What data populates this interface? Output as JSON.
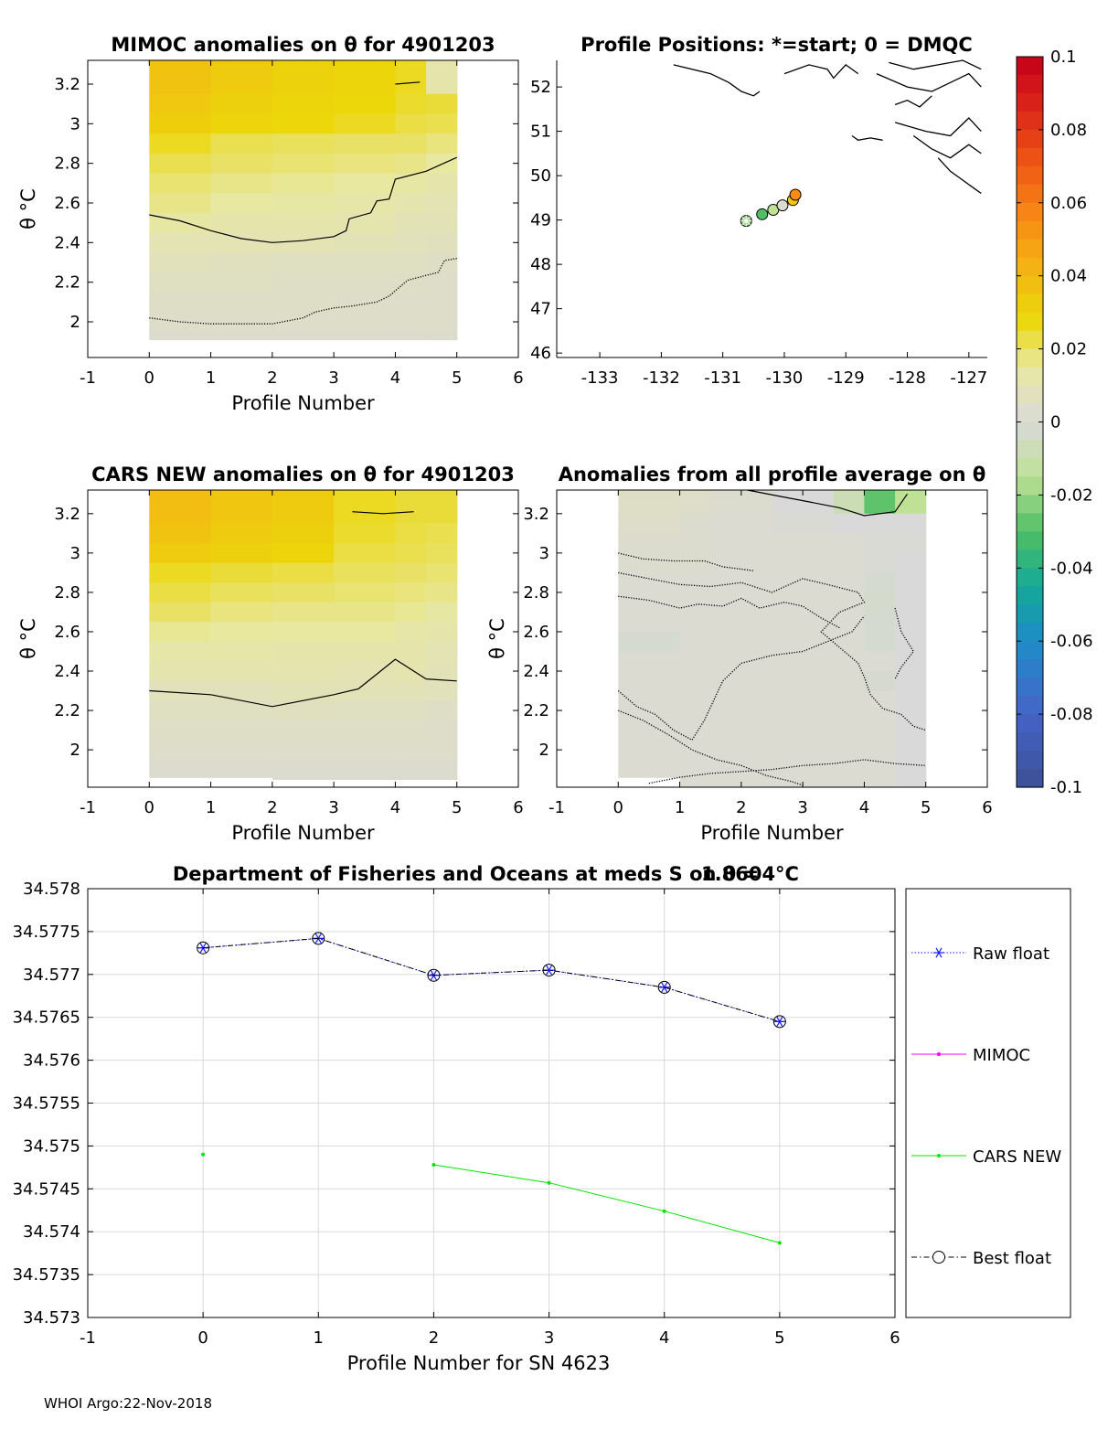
{
  "footer": "WHOI Argo:22-Nov-2018",
  "colors": {
    "axis": "#000000",
    "grid": "#d9d9d9",
    "cellBase": "#d9d9d9",
    "raw": "#1a1aff",
    "mimoc": "#ff00ff",
    "cars": "#00e600",
    "best": "#000000"
  },
  "chart_data": [
    {
      "id": "mimoc",
      "type": "heatmap",
      "title": "MIMOC anomalies on θ  for 4901203",
      "xlabel": "Profile Number",
      "ylabel": "θ °C",
      "xlim": [
        -1,
        6
      ],
      "ylim": [
        1.82,
        3.32
      ],
      "xticks": [
        -1,
        0,
        1,
        2,
        3,
        4,
        5,
        6
      ],
      "yticks": [
        2,
        2.2,
        2.4,
        2.6,
        2.8,
        3,
        3.2
      ],
      "theta_levels": [
        3.2,
        3.1,
        3.0,
        2.9,
        2.8,
        2.7,
        2.6,
        2.5,
        2.4,
        2.3,
        2.2,
        2.1,
        2.0,
        1.9
      ],
      "anomaly_grid": [
        [
          0.036,
          0.033,
          0.03,
          0.029,
          0.026,
          0.012
        ],
        [
          0.034,
          0.031,
          0.029,
          0.028,
          0.025,
          0.024
        ],
        [
          0.032,
          0.029,
          0.028,
          0.026,
          0.023,
          0.022
        ],
        [
          0.026,
          0.022,
          0.021,
          0.02,
          0.02,
          0.018
        ],
        [
          0.022,
          0.02,
          0.019,
          0.018,
          0.017,
          0.015
        ],
        [
          0.019,
          0.017,
          0.016,
          0.015,
          0.014,
          0.012
        ],
        [
          0.017,
          0.015,
          0.014,
          0.013,
          0.011,
          0.01
        ],
        [
          0.014,
          0.012,
          0.012,
          0.011,
          0.009,
          0.009
        ],
        [
          0.01,
          0.01,
          0.01,
          0.009,
          0.008,
          0.007
        ],
        [
          0.008,
          0.007,
          0.006,
          0.006,
          0.006,
          0.005
        ],
        [
          0.006,
          0.006,
          0.005,
          0.005,
          0.005,
          0.004
        ],
        [
          0.005,
          0.005,
          0.005,
          0.004,
          0.004,
          0.004
        ],
        [
          0.004,
          0.004,
          0.004,
          0.004,
          0.004,
          0.004
        ],
        [
          0.003,
          0.003,
          0.003,
          0.003,
          0.003,
          0.003
        ]
      ],
      "contours": [
        {
          "style": "solid",
          "x": [
            4.0,
            4.4
          ],
          "y": [
            3.2,
            3.21
          ]
        },
        {
          "style": "solid",
          "x": [
            0,
            0.5,
            1,
            1.5,
            2,
            2.5,
            3,
            3.2,
            3.25,
            3.6,
            3.7,
            3.9,
            4.0,
            4.5,
            5.0
          ],
          "y": [
            2.54,
            2.51,
            2.46,
            2.42,
            2.4,
            2.41,
            2.43,
            2.46,
            2.52,
            2.55,
            2.61,
            2.62,
            2.72,
            2.76,
            2.83
          ]
        },
        {
          "style": "dotted",
          "x": [
            0,
            0.5,
            1,
            1.5,
            2,
            2.5,
            2.7,
            3.0,
            3.3,
            3.7,
            3.9,
            4.2,
            4.7,
            4.8,
            5.0
          ],
          "y": [
            2.02,
            2.0,
            1.99,
            1.99,
            1.99,
            2.02,
            2.05,
            2.07,
            2.08,
            2.1,
            2.13,
            2.21,
            2.25,
            2.31,
            2.32
          ]
        }
      ]
    },
    {
      "id": "positions",
      "type": "scatter",
      "title": "Profile Positions: *=start; 0 = DMQC",
      "xlim": [
        -133.7,
        -126.7
      ],
      "ylim": [
        45.9,
        52.6
      ],
      "xticks": [
        -133,
        -132,
        -131,
        -130,
        -129,
        -128,
        -127
      ],
      "yticks": [
        46,
        47,
        48,
        49,
        50,
        51,
        52
      ],
      "lon": [
        -130.62,
        -130.36,
        -130.18,
        -130.03,
        -129.86,
        -129.82
      ],
      "lat": [
        48.98,
        49.13,
        49.23,
        49.33,
        49.45,
        49.57
      ],
      "marker_anomaly": [
        -0.02,
        -0.03,
        -0.015,
        0.003,
        0.035,
        0.055
      ],
      "coastline": [
        {
          "lon": [
            -131.8,
            -131.2,
            -130.9,
            -130.7,
            -130.5,
            -130.4
          ],
          "lat": [
            52.5,
            52.3,
            52.1,
            51.9,
            51.8,
            51.9
          ]
        },
        {
          "lon": [
            -130.0,
            -129.6,
            -129.3,
            -129.2,
            -129.0,
            -128.8
          ],
          "lat": [
            52.3,
            52.5,
            52.4,
            52.2,
            52.5,
            52.3
          ]
        },
        {
          "lon": [
            -128.5,
            -128.0,
            -127.6,
            -127.3,
            -127.0,
            -126.8
          ],
          "lat": [
            52.3,
            52.0,
            51.9,
            52.1,
            52.3,
            52.0
          ]
        },
        {
          "lon": [
            -128.3,
            -127.9,
            -127.5,
            -127.1,
            -126.8
          ],
          "lat": [
            52.55,
            52.4,
            52.5,
            52.6,
            52.4
          ]
        },
        {
          "lon": [
            -128.2,
            -127.7,
            -127.3,
            -127.0,
            -126.8
          ],
          "lat": [
            51.2,
            51.0,
            50.9,
            51.3,
            51.0
          ]
        },
        {
          "lon": [
            -127.9,
            -127.6,
            -127.3,
            -127.0,
            -126.8
          ],
          "lat": [
            50.9,
            50.6,
            50.4,
            50.7,
            50.5
          ]
        },
        {
          "lon": [
            -127.5,
            -127.3,
            -127.1,
            -126.9,
            -126.8
          ],
          "lat": [
            50.4,
            50.1,
            49.9,
            49.7,
            49.6
          ]
        },
        {
          "lon": [
            -128.9,
            -128.8,
            -128.6,
            -128.4
          ],
          "lat": [
            50.9,
            50.8,
            50.85,
            50.8
          ]
        },
        {
          "lon": [
            -128.2,
            -128.0,
            -127.8,
            -127.6
          ],
          "lat": [
            51.6,
            51.7,
            51.55,
            51.8
          ]
        }
      ]
    },
    {
      "id": "cars",
      "type": "heatmap",
      "title": "CARS NEW anomalies on θ for 4901203",
      "xlabel": "Profile Number",
      "ylabel": "θ °C",
      "xlim": [
        -1,
        6
      ],
      "ylim": [
        1.81,
        3.32
      ],
      "xticks": [
        -1,
        0,
        1,
        2,
        3,
        4,
        5,
        6
      ],
      "yticks": [
        2,
        2.2,
        2.4,
        2.6,
        2.8,
        3,
        3.2
      ],
      "theta_levels": [
        3.2,
        3.1,
        3.0,
        2.9,
        2.8,
        2.7,
        2.6,
        2.5,
        2.4,
        2.3,
        2.2,
        2.1,
        2.0,
        1.9
      ],
      "anomaly_grid": [
        [
          0.038,
          0.035,
          0.033,
          0.026,
          0.024,
          0.024
        ],
        [
          0.036,
          0.033,
          0.031,
          0.025,
          0.023,
          0.022
        ],
        [
          0.033,
          0.031,
          0.029,
          0.023,
          0.022,
          0.021
        ],
        [
          0.026,
          0.024,
          0.023,
          0.021,
          0.02,
          0.019
        ],
        [
          0.023,
          0.021,
          0.02,
          0.019,
          0.018,
          0.017
        ],
        [
          0.02,
          0.018,
          0.017,
          0.017,
          0.016,
          0.014
        ],
        [
          0.016,
          0.015,
          0.015,
          0.015,
          0.013,
          0.012
        ],
        [
          0.013,
          0.013,
          0.012,
          0.012,
          0.012,
          0.01
        ],
        [
          0.011,
          0.011,
          0.011,
          0.01,
          0.011,
          0.009
        ],
        [
          0.008,
          0.008,
          0.009,
          0.009,
          0.009,
          0.008
        ],
        [
          0.006,
          0.006,
          0.007,
          0.006,
          0.006,
          0.005
        ],
        [
          0.005,
          0.005,
          0.005,
          0.005,
          0.005,
          0.004
        ],
        [
          0.004,
          0.004,
          0.004,
          0.004,
          0.004,
          0.004
        ],
        [
          0.003,
          0.003,
          0.003,
          0.003,
          0.003,
          0.003
        ]
      ],
      "contours": [
        {
          "style": "solid",
          "x": [
            3.3,
            3.8,
            4.3
          ],
          "y": [
            3.21,
            3.2,
            3.21
          ]
        },
        {
          "style": "solid",
          "x": [
            0,
            1,
            2,
            3,
            3.4,
            4.0,
            4.5,
            5.0
          ],
          "y": [
            2.3,
            2.28,
            2.22,
            2.28,
            2.31,
            2.46,
            2.36,
            2.35
          ]
        }
      ]
    },
    {
      "id": "allavg",
      "type": "heatmap",
      "title": "Anomalies from all profile average on θ",
      "xlabel": "Profile Number",
      "ylabel": "θ °C",
      "xlim": [
        -1,
        6
      ],
      "ylim": [
        1.81,
        3.32
      ],
      "xticks": [
        -1,
        0,
        1,
        2,
        3,
        4,
        5,
        6
      ],
      "yticks": [
        2,
        2.2,
        2.4,
        2.6,
        2.8,
        3,
        3.2
      ],
      "theta_levels": [
        3.25,
        3.15,
        3.05,
        2.95,
        2.85,
        2.75,
        2.65,
        2.55,
        2.45,
        2.35,
        2.25,
        2.15,
        2.05,
        1.95,
        1.85
      ],
      "anomaly_grid": [
        [
          0.005,
          0.004,
          0.003,
          0.0,
          -0.008,
          -0.028,
          -0.015
        ],
        [
          0.004,
          0.003,
          0.002,
          0.001,
          0.0,
          0.0,
          0.0
        ],
        [
          0.003,
          0.003,
          0.002,
          0.002,
          0.002,
          0.001,
          0.001
        ],
        [
          0.003,
          0.003,
          0.002,
          0.002,
          0.002,
          0.001,
          0.0
        ],
        [
          0.002,
          0.002,
          0.002,
          0.002,
          0.002,
          -0.002,
          0.0
        ],
        [
          0.002,
          0.002,
          0.002,
          0.002,
          0.002,
          -0.003,
          0.0
        ],
        [
          0.002,
          0.002,
          0.002,
          0.002,
          0.002,
          -0.002,
          0.0
        ],
        [
          -0.002,
          0.002,
          0.002,
          0.002,
          0.002,
          -0.002,
          0.0
        ],
        [
          0.002,
          0.002,
          0.002,
          0.002,
          0.002,
          0.002,
          0.0
        ],
        [
          0.002,
          0.002,
          0.002,
          0.002,
          0.002,
          -0.002,
          0.0
        ],
        [
          0.002,
          0.002,
          0.002,
          0.002,
          0.002,
          0.002,
          0.0
        ],
        [
          0.002,
          0.002,
          0.002,
          0.002,
          0.002,
          0.002,
          0.0
        ],
        [
          0.002,
          0.002,
          0.002,
          0.002,
          0.002,
          0.002,
          0.0
        ],
        [
          0.002,
          0.002,
          0.002,
          0.002,
          0.002,
          0.002,
          0.0
        ],
        [
          0.002,
          0.002,
          0.002,
          0.002,
          0.002,
          0.002,
          0.0
        ]
      ],
      "contours": [
        {
          "style": "solid",
          "x": [
            2.1,
            2.6,
            3.1,
            3.6,
            4.0,
            4.5,
            4.7
          ],
          "y": [
            3.32,
            3.29,
            3.26,
            3.23,
            3.19,
            3.21,
            3.3
          ]
        },
        {
          "style": "dotted",
          "x": [
            0,
            0.4,
            0.9,
            1.4,
            1.7,
            2.2
          ],
          "y": [
            3.0,
            2.97,
            2.96,
            2.96,
            2.93,
            2.91
          ]
        },
        {
          "style": "dotted",
          "x": [
            0,
            0.5,
            1.0,
            1.5,
            2.0,
            2.5,
            3.0,
            3.4,
            3.9,
            4.0,
            3.6,
            3.3,
            3.6,
            3.9,
            4.0,
            4.1,
            4.3,
            4.6,
            4.8,
            5.0
          ],
          "y": [
            2.9,
            2.87,
            2.84,
            2.83,
            2.85,
            2.8,
            2.87,
            2.84,
            2.8,
            2.75,
            2.7,
            2.6,
            2.52,
            2.44,
            2.37,
            2.28,
            2.21,
            2.18,
            2.12,
            2.1
          ]
        },
        {
          "style": "dotted",
          "x": [
            0,
            0.5,
            1.0,
            1.3,
            1.7,
            2.0,
            2.3,
            2.7,
            3.0,
            3.3,
            3.6
          ],
          "y": [
            2.78,
            2.76,
            2.72,
            2.74,
            2.73,
            2.77,
            2.72,
            2.75,
            2.73,
            2.67,
            2.62
          ]
        },
        {
          "style": "dotted",
          "x": [
            0,
            0.3,
            0.6,
            0.9,
            1.2,
            1.4,
            1.7,
            2.0,
            2.5,
            3.0,
            3.4,
            3.8,
            4.0
          ],
          "y": [
            2.3,
            2.22,
            2.18,
            2.1,
            2.05,
            2.15,
            2.35,
            2.44,
            2.48,
            2.5,
            2.55,
            2.6,
            2.68
          ]
        },
        {
          "style": "dotted",
          "x": [
            0,
            0.4,
            0.8,
            1.2,
            1.6,
            2.0,
            2.4,
            2.8,
            3.0
          ],
          "y": [
            2.2,
            2.15,
            2.08,
            2.0,
            1.95,
            1.92,
            1.87,
            1.84,
            1.82
          ]
        },
        {
          "style": "dotted",
          "x": [
            0.5,
            1.0,
            1.5,
            2.0,
            2.5,
            3.0,
            3.5,
            4.0,
            4.5,
            5.0
          ],
          "y": [
            1.83,
            1.86,
            1.88,
            1.89,
            1.9,
            1.92,
            1.93,
            1.95,
            1.93,
            1.92
          ]
        },
        {
          "style": "dotted",
          "x": [
            4.5,
            4.6,
            4.8,
            4.6,
            4.5
          ],
          "y": [
            2.72,
            2.6,
            2.5,
            2.42,
            2.36
          ]
        }
      ]
    },
    {
      "id": "salinity",
      "type": "line",
      "title": "Department of Fisheries and Oceans at meds S on θ = 1.8604°C",
      "xlabel": "Profile Number for SN 4623",
      "xlim": [
        -1,
        6
      ],
      "ylim": [
        34.573,
        34.578
      ],
      "xticks": [
        -1,
        0,
        1,
        2,
        3,
        4,
        5,
        6
      ],
      "ytick_labels": [
        "34.578",
        "34.5775",
        "34.577",
        "34.5765",
        "34.576",
        "34.5755",
        "34.575",
        "34.5745",
        "34.574",
        "34.5735",
        "34.573"
      ],
      "yticks": [
        34.578,
        34.5775,
        34.577,
        34.5765,
        34.576,
        34.5755,
        34.575,
        34.5745,
        34.574,
        34.5735,
        34.573
      ],
      "series": [
        {
          "name": "Raw float",
          "style": "dotted-star",
          "x": [
            0,
            1,
            2,
            3,
            4,
            5
          ],
          "y": [
            34.57731,
            34.57742,
            34.57699,
            34.57705,
            34.57685,
            34.57645
          ]
        },
        {
          "name": "MIMOC",
          "style": "solid-dot",
          "x": [],
          "y": []
        },
        {
          "name": "CARS NEW",
          "style": "solid-dot",
          "x": [
            0,
            2,
            3,
            4,
            5
          ],
          "y": [
            34.5749,
            34.57478,
            34.57457,
            34.57424,
            34.57387
          ],
          "connect_from": 1
        },
        {
          "name": "Best float",
          "style": "dashdot-circle",
          "x": [
            0,
            1,
            2,
            3,
            4,
            5
          ],
          "y": [
            34.57731,
            34.57742,
            34.57699,
            34.57705,
            34.57685,
            34.57645
          ]
        }
      ]
    }
  ],
  "colorbar": {
    "min": -0.1,
    "max": 0.1,
    "tick_labels": [
      "0.1",
      "0.08",
      "0.06",
      "0.04",
      "0.02",
      "0",
      "-0.02",
      "-0.04",
      "-0.06",
      "-0.08",
      "-0.1"
    ],
    "ticks": [
      0.1,
      0.08,
      0.06,
      0.04,
      0.02,
      0,
      -0.02,
      -0.04,
      -0.06,
      -0.08,
      -0.1
    ]
  }
}
